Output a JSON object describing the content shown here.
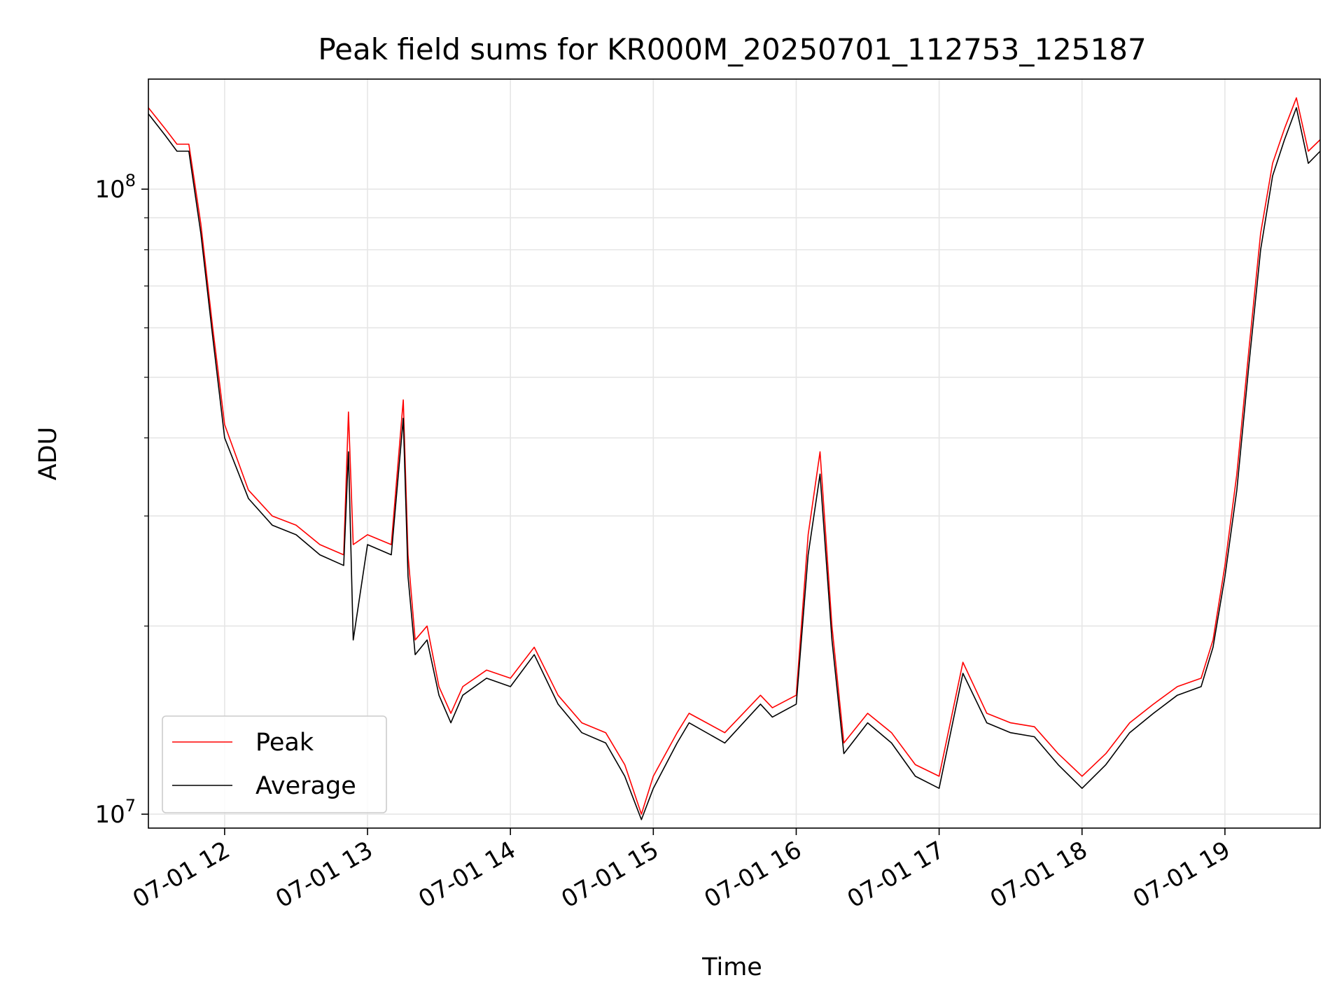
{
  "chart_data": {
    "type": "line",
    "title": "Peak field sums for KR000M_20250701_112753_125187",
    "xlabel": "Time",
    "ylabel": "ADU",
    "yscale": "log",
    "ylim": [
      9500000,
      150000000
    ],
    "grid": true,
    "legend_position": "lower-left",
    "x_ticks": [
      "07-01 12",
      "07-01 13",
      "07-01 14",
      "07-01 15",
      "07-01 16",
      "07-01 17",
      "07-01 18",
      "07-01 19"
    ],
    "y_ticks": [
      {
        "value": 10000000,
        "base": "10",
        "exp": "7"
      },
      {
        "value": 100000000,
        "base": "10",
        "exp": "8"
      }
    ],
    "x": [
      "11:28",
      "11:35",
      "11:40",
      "11:45",
      "11:50",
      "11:55",
      "12:00",
      "12:10",
      "12:20",
      "12:30",
      "12:40",
      "12:50",
      "12:52",
      "12:54",
      "13:00",
      "13:10",
      "13:15",
      "13:17",
      "13:20",
      "13:25",
      "13:30",
      "13:35",
      "13:40",
      "13:50",
      "14:00",
      "14:10",
      "14:20",
      "14:30",
      "14:40",
      "14:48",
      "14:55",
      "15:00",
      "15:10",
      "15:15",
      "15:30",
      "15:45",
      "15:50",
      "16:00",
      "16:05",
      "16:10",
      "16:15",
      "16:20",
      "16:30",
      "16:40",
      "16:50",
      "17:00",
      "17:10",
      "17:20",
      "17:30",
      "17:40",
      "17:50",
      "18:00",
      "18:10",
      "18:20",
      "18:30",
      "18:40",
      "18:50",
      "18:55",
      "19:00",
      "19:05",
      "19:10",
      "19:15",
      "19:20",
      "19:25",
      "19:30",
      "19:35",
      "19:40"
    ],
    "series": [
      {
        "name": "Peak",
        "color": "#ff0000",
        "values": [
          135000000,
          125000000,
          118000000,
          118000000,
          88000000,
          60000000,
          42000000,
          33000000,
          30000000,
          29000000,
          27000000,
          26000000,
          44000000,
          27000000,
          28000000,
          27000000,
          46000000,
          26000000,
          19000000,
          20000000,
          16000000,
          14500000,
          16000000,
          17000000,
          16500000,
          18500000,
          15500000,
          14000000,
          13500000,
          12000000,
          10000000,
          11500000,
          13500000,
          14500000,
          13500000,
          15500000,
          14800000,
          15500000,
          28000000,
          38000000,
          20000000,
          13000000,
          14500000,
          13500000,
          12000000,
          11500000,
          17500000,
          14500000,
          14000000,
          13800000,
          12500000,
          11500000,
          12500000,
          14000000,
          15000000,
          16000000,
          16500000,
          19000000,
          25000000,
          35000000,
          55000000,
          85000000,
          110000000,
          125000000,
          140000000,
          115000000,
          120000000
        ]
      },
      {
        "name": "Average",
        "color": "#000000",
        "values": [
          132000000,
          122000000,
          115000000,
          115000000,
          85000000,
          58000000,
          40000000,
          32000000,
          29000000,
          28000000,
          26000000,
          25000000,
          38000000,
          19000000,
          27000000,
          26000000,
          43000000,
          24000000,
          18000000,
          19000000,
          15500000,
          14000000,
          15500000,
          16500000,
          16000000,
          18000000,
          15000000,
          13500000,
          13000000,
          11500000,
          9800000,
          11000000,
          13000000,
          14000000,
          13000000,
          15000000,
          14300000,
          15000000,
          26000000,
          35000000,
          19000000,
          12500000,
          14000000,
          13000000,
          11500000,
          11000000,
          16800000,
          14000000,
          13500000,
          13300000,
          12000000,
          11000000,
          12000000,
          13500000,
          14500000,
          15500000,
          16000000,
          18500000,
          24000000,
          33000000,
          52000000,
          80000000,
          105000000,
          120000000,
          135000000,
          110000000,
          115000000
        ]
      }
    ]
  }
}
